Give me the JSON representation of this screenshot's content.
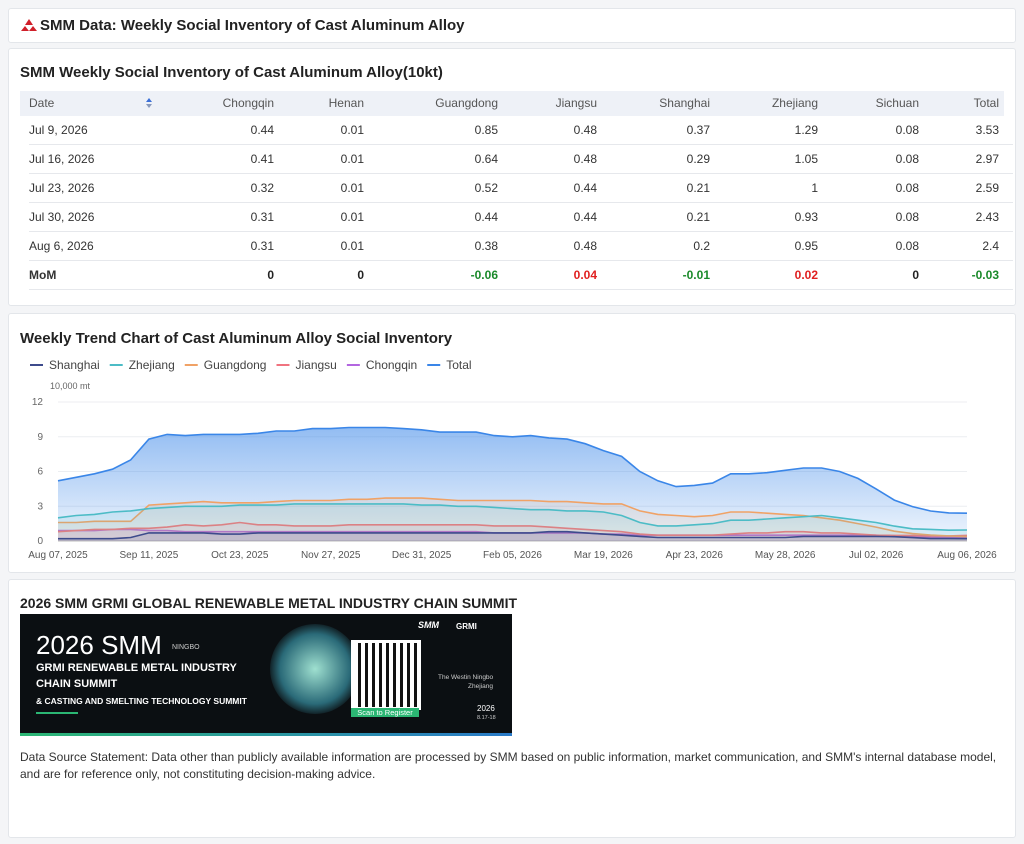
{
  "header": {
    "title": "SMM Data: Weekly Social Inventory of Cast Aluminum Alloy"
  },
  "table": {
    "title": "SMM Weekly Social Inventory of Cast Aluminum Alloy(10kt)",
    "columns": [
      "Date",
      "Chongqin",
      "Henan",
      "Guangdong",
      "Jiangsu",
      "Shanghai",
      "Zhejiang",
      "Sichuan",
      "Total"
    ],
    "rows": [
      [
        "Jul 9, 2026",
        0.44,
        0.01,
        0.85,
        0.48,
        0.37,
        1.29,
        0.08,
        3.53
      ],
      [
        "Jul 16, 2026",
        0.41,
        0.01,
        0.64,
        0.48,
        0.29,
        1.05,
        0.08,
        2.97
      ],
      [
        "Jul 23, 2026",
        0.32,
        0.01,
        0.52,
        0.44,
        0.21,
        1,
        0.08,
        2.59
      ],
      [
        "Jul 30, 2026",
        0.31,
        0.01,
        0.44,
        0.44,
        0.21,
        0.93,
        0.08,
        2.43
      ],
      [
        "Aug 6, 2026",
        0.31,
        0.01,
        0.38,
        0.48,
        0.2,
        0.95,
        0.08,
        2.4
      ],
      [
        "MoM",
        0,
        0,
        -0.06,
        0.04,
        -0.01,
        0.02,
        0,
        -0.03
      ]
    ]
  },
  "chart_data": {
    "type": "line",
    "title": "Weekly Trend Chart of Cast Aluminum Alloy Social Inventory",
    "y_unit": "10,000 mt",
    "x": [
      "Aug 07, 2025",
      null,
      null,
      null,
      null,
      "Sep 11, 2025",
      null,
      null,
      null,
      null,
      "Oct 23, 2025",
      null,
      null,
      null,
      null,
      "Nov 27, 2025",
      null,
      null,
      null,
      null,
      "Dec 31, 2025",
      null,
      null,
      null,
      null,
      "Feb 05, 2026",
      null,
      null,
      null,
      null,
      "Mar 19, 2026",
      null,
      null,
      null,
      null,
      "Apr 23, 2026",
      null,
      null,
      null,
      null,
      "May 28, 2026",
      null,
      null,
      null,
      null,
      "Jul 02, 2026",
      null,
      null,
      null,
      null,
      "Aug 06, 2026"
    ],
    "ylim": [
      0,
      12
    ],
    "yticks": [
      0,
      3,
      6,
      9,
      12
    ],
    "grid": true,
    "area": true,
    "series": [
      {
        "name": "Shanghai",
        "color": "#3d4b8c",
        "values": [
          0.2,
          0.2,
          0.2,
          0.2,
          0.3,
          0.7,
          0.7,
          0.7,
          0.7,
          0.6,
          0.6,
          0.7,
          0.7,
          0.7,
          0.7,
          0.7,
          0.7,
          0.7,
          0.7,
          0.7,
          0.7,
          0.7,
          0.7,
          0.7,
          0.7,
          0.7,
          0.7,
          0.8,
          0.8,
          0.7,
          0.6,
          0.5,
          0.4,
          0.3,
          0.3,
          0.3,
          0.3,
          0.3,
          0.3,
          0.3,
          0.3,
          0.4,
          0.4,
          0.4,
          0.4,
          0.4,
          0.37,
          0.29,
          0.21,
          0.21,
          0.2
        ]
      },
      {
        "name": "Zhejiang",
        "color": "#4cbcc6",
        "values": [
          2.0,
          2.2,
          2.3,
          2.5,
          2.6,
          2.8,
          2.9,
          3.0,
          3.0,
          3.0,
          3.1,
          3.1,
          3.1,
          3.2,
          3.2,
          3.2,
          3.2,
          3.2,
          3.2,
          3.2,
          3.1,
          3.1,
          3.0,
          3.0,
          2.9,
          2.8,
          2.7,
          2.7,
          2.6,
          2.6,
          2.5,
          2.2,
          1.6,
          1.3,
          1.3,
          1.4,
          1.5,
          1.8,
          1.8,
          1.9,
          2.0,
          2.1,
          2.2,
          2.0,
          1.8,
          1.6,
          1.29,
          1.05,
          1.0,
          0.93,
          0.95
        ]
      },
      {
        "name": "Guangdong",
        "color": "#f0a266",
        "values": [
          1.6,
          1.6,
          1.7,
          1.7,
          1.7,
          3.1,
          3.2,
          3.3,
          3.4,
          3.3,
          3.3,
          3.3,
          3.4,
          3.5,
          3.5,
          3.5,
          3.6,
          3.6,
          3.7,
          3.7,
          3.7,
          3.6,
          3.5,
          3.5,
          3.5,
          3.5,
          3.5,
          3.4,
          3.4,
          3.3,
          3.2,
          3.2,
          2.6,
          2.3,
          2.2,
          2.1,
          2.2,
          2.5,
          2.5,
          2.4,
          2.3,
          2.2,
          2.0,
          1.8,
          1.5,
          1.2,
          0.85,
          0.64,
          0.52,
          0.44,
          0.38
        ]
      },
      {
        "name": "Jiangsu",
        "color": "#f0737f",
        "values": [
          0.8,
          0.9,
          1.0,
          1.0,
          1.1,
          1.1,
          1.2,
          1.4,
          1.3,
          1.4,
          1.6,
          1.4,
          1.4,
          1.3,
          1.3,
          1.3,
          1.4,
          1.4,
          1.4,
          1.4,
          1.4,
          1.4,
          1.4,
          1.4,
          1.3,
          1.3,
          1.3,
          1.2,
          1.1,
          1.0,
          0.9,
          0.8,
          0.6,
          0.5,
          0.5,
          0.5,
          0.5,
          0.6,
          0.7,
          0.7,
          0.8,
          0.8,
          0.7,
          0.7,
          0.6,
          0.5,
          0.48,
          0.48,
          0.44,
          0.44,
          0.48
        ]
      },
      {
        "name": "Chongqin",
        "color": "#b366e0",
        "values": [
          0.9,
          0.9,
          0.9,
          1.0,
          1.0,
          0.9,
          0.9,
          0.8,
          0.8,
          0.8,
          0.8,
          0.8,
          0.8,
          0.8,
          0.8,
          0.8,
          0.8,
          0.8,
          0.8,
          0.8,
          0.8,
          0.8,
          0.8,
          0.8,
          0.7,
          0.7,
          0.7,
          0.7,
          0.7,
          0.7,
          0.6,
          0.6,
          0.5,
          0.5,
          0.5,
          0.5,
          0.5,
          0.5,
          0.5,
          0.5,
          0.5,
          0.5,
          0.5,
          0.5,
          0.5,
          0.5,
          0.44,
          0.41,
          0.32,
          0.31,
          0.31
        ]
      },
      {
        "name": "Total",
        "color": "#3a86e8",
        "values": [
          5.2,
          5.5,
          5.8,
          6.2,
          7.0,
          8.8,
          9.2,
          9.1,
          9.2,
          9.2,
          9.2,
          9.3,
          9.5,
          9.5,
          9.7,
          9.7,
          9.8,
          9.8,
          9.8,
          9.7,
          9.6,
          9.4,
          9.4,
          9.4,
          9.1,
          9.0,
          9.1,
          8.9,
          8.8,
          8.4,
          7.8,
          7.3,
          6.0,
          5.2,
          4.7,
          4.8,
          5.0,
          5.8,
          5.8,
          5.9,
          6.1,
          6.3,
          6.3,
          6.0,
          5.4,
          4.5,
          3.53,
          2.97,
          2.59,
          2.43,
          2.4
        ]
      }
    ]
  },
  "banner": {
    "section_title": "2026 SMM GRMI GLOBAL RENEWABLE METAL INDUSTRY CHAIN SUMMIT",
    "brand": "2026 SMM",
    "city": "NINGBO",
    "line1": "GRMI RENEWABLE METAL INDUSTRY",
    "line2": "CHAIN SUMMIT",
    "line3": "& CASTING AND SMELTING TECHNOLOGY SUMMIT",
    "logo1": "SMM",
    "logo2": "GRMI",
    "qr_caption": "Scan to Register",
    "venue1": "The Westin Ningbo",
    "venue2": "Zhejiang",
    "year": "2026",
    "dates": "8.17-18"
  },
  "footer": {
    "text": "Data Source Statement: Data other than publicly available information are processed by SMM based on public information, market communication, and SMM's internal database model, and are for reference only, not constituting decision-making advice."
  }
}
